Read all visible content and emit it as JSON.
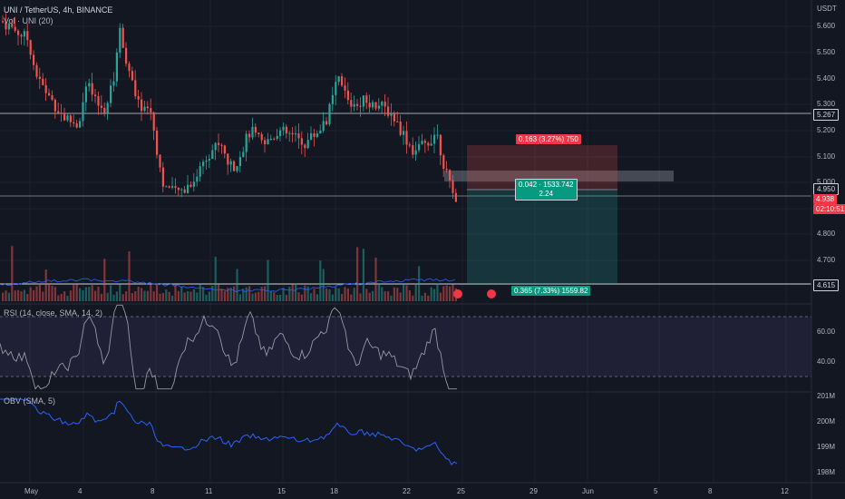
{
  "symbol_legend": "UNI / TetherUS, 4h, BINANCE",
  "volume_legend": "Vol · UNI (20)",
  "currency": "USDT",
  "price_ticks": [
    "5.600",
    "5.500",
    "5.400",
    "5.300",
    "5.200",
    "5.100",
    "5.000",
    "4.900",
    "4.800",
    "4.700"
  ],
  "current_price": "4.938",
  "countdown": "02:10:51",
  "line_labels": [
    "5.267",
    "4.950",
    "4.615"
  ],
  "position_tool": {
    "stop_text": "0.163 (3.27%) 750",
    "entry_text": "0.042 · 1533.742",
    "ratio_text": "2.24",
    "target_text": "0.365 (7.33%) 1559.82"
  },
  "rsi": {
    "legend": "RSI (14, close, SMA, 14, 2)",
    "ticks": [
      "60.00",
      "40.00"
    ]
  },
  "obv": {
    "legend": "OBV (SMA, 5)",
    "ticks": [
      "201M",
      "200M",
      "199M",
      "198M"
    ]
  },
  "time_ticks": [
    "May",
    "4",
    "8",
    "11",
    "15",
    "18",
    "22",
    "25",
    "29",
    "Jun",
    "5",
    "8",
    "12"
  ],
  "colors": {
    "up": "#26a69a",
    "down": "#ef5350",
    "background": "#131722",
    "rsi_band": "#7e57c2",
    "obv_line": "#2962ff"
  }
}
